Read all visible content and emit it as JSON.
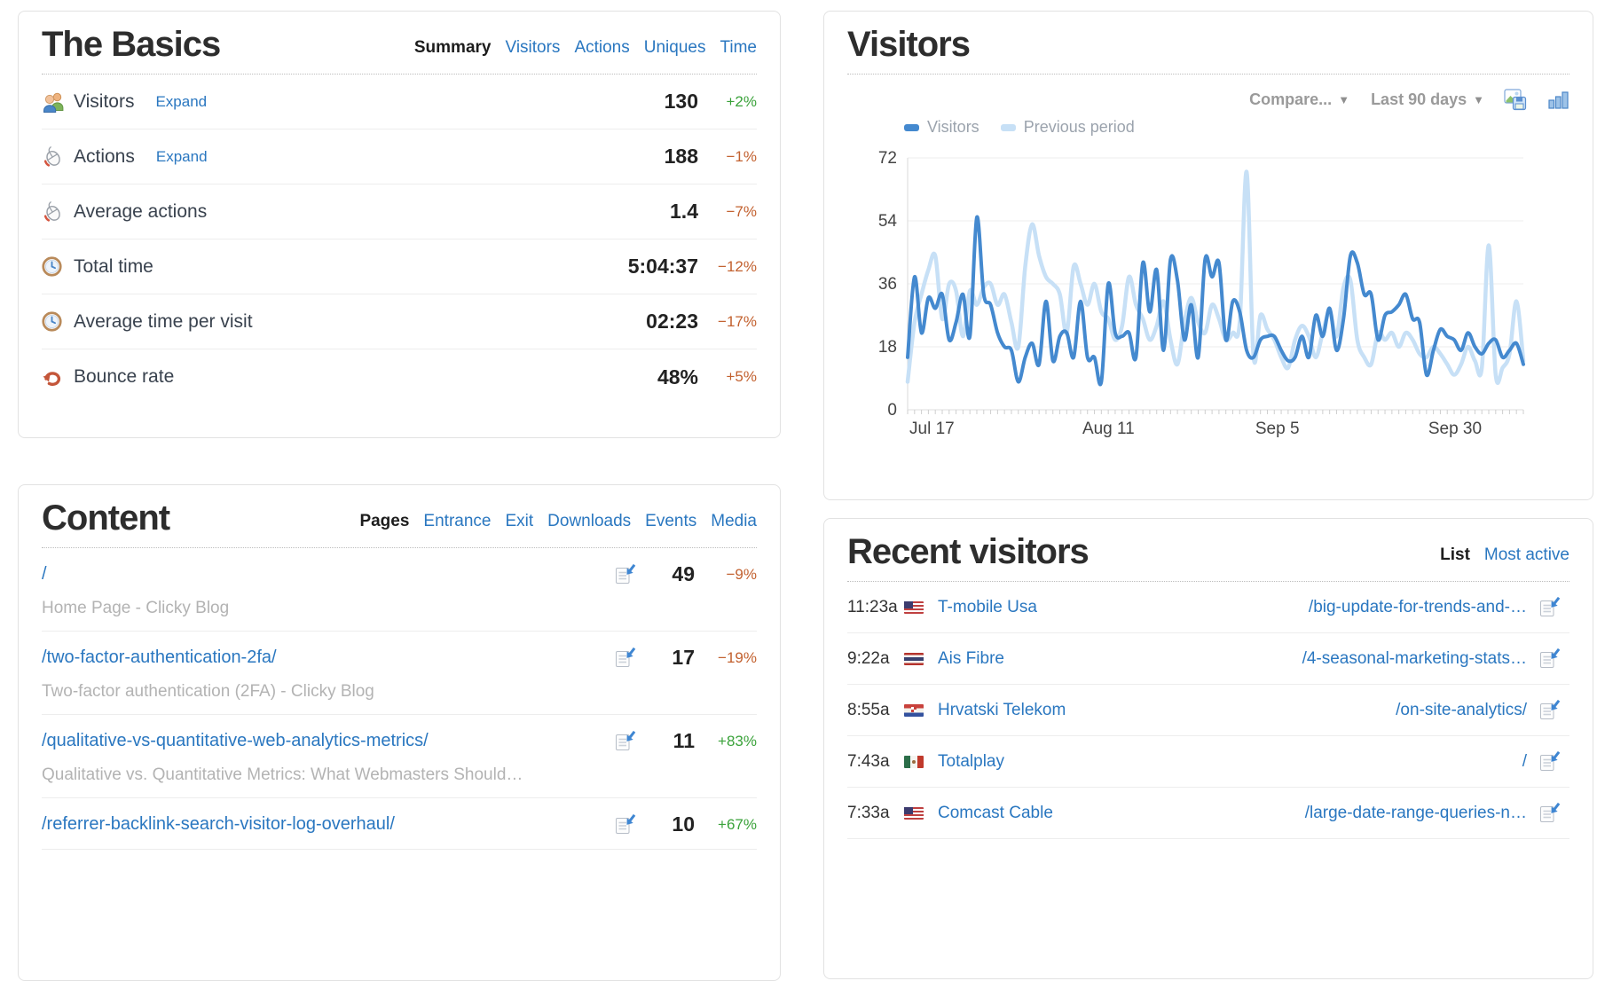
{
  "basics": {
    "title": "The Basics",
    "tabs": [
      {
        "label": "Summary",
        "active": true
      },
      {
        "label": "Visitors"
      },
      {
        "label": "Actions"
      },
      {
        "label": "Uniques"
      },
      {
        "label": "Time"
      }
    ],
    "rows": [
      {
        "icon": "visitors-icon",
        "label": "Visitors",
        "expand": "Expand",
        "value": "130",
        "pct": "+2%",
        "trend": "good"
      },
      {
        "icon": "mouse-icon",
        "label": "Actions",
        "expand": "Expand",
        "value": "188",
        "pct": "−1%",
        "trend": "bad"
      },
      {
        "icon": "mouse-icon",
        "label": "Average actions",
        "value": "1.4",
        "pct": "−7%",
        "trend": "bad"
      },
      {
        "icon": "clock-icon",
        "label": "Total time",
        "value": "5:04:37",
        "pct": "−12%",
        "trend": "bad"
      },
      {
        "icon": "clock-icon",
        "label": "Average time per visit",
        "value": "02:23",
        "pct": "−17%",
        "trend": "bad"
      },
      {
        "icon": "bounce-icon",
        "label": "Bounce rate",
        "value": "48%",
        "pct": "+5%",
        "trend": "bad"
      }
    ]
  },
  "visitors_panel": {
    "title": "Visitors",
    "compare_label": "Compare...",
    "range_label": "Last 90 days",
    "dropdown_arrow": "▼"
  },
  "chart_data": {
    "type": "line",
    "title": "Visitors",
    "xlabel": "",
    "ylabel": "",
    "ylim": [
      0,
      72
    ],
    "yticks": [
      0,
      18,
      36,
      54,
      72
    ],
    "grid": true,
    "legend_position": "top-left",
    "x_tick_labels": [
      {
        "index": 0,
        "label": "Jul 17"
      },
      {
        "index": 25,
        "label": "Aug 11"
      },
      {
        "index": 50,
        "label": "Sep 5"
      },
      {
        "index": 75,
        "label": "Sep 30"
      }
    ],
    "series": [
      {
        "name": "Visitors",
        "color": "#4489cf",
        "values": [
          15,
          38,
          22,
          32,
          29,
          33,
          20,
          25,
          33,
          21,
          55,
          33,
          30,
          22,
          18,
          17,
          8,
          15,
          19,
          13,
          31,
          14,
          21,
          22,
          15,
          31,
          15,
          15,
          8,
          36,
          22,
          21,
          22,
          15,
          42,
          28,
          40,
          17,
          43,
          37,
          20,
          30,
          15,
          43,
          38,
          42,
          20,
          31,
          28,
          17,
          15,
          20,
          21,
          21,
          17,
          14,
          15,
          21,
          15,
          27,
          21,
          29,
          17,
          26,
          44,
          42,
          33,
          33,
          20,
          27,
          28,
          30,
          33,
          26,
          25,
          10,
          17,
          23,
          21,
          20,
          17,
          22,
          18,
          16,
          19,
          20,
          15,
          17,
          19,
          13
        ]
      },
      {
        "name": "Previous period",
        "color": "#c7e0f6",
        "values": [
          8,
          25,
          33,
          40,
          44,
          26,
          36,
          34,
          21,
          34,
          30,
          35,
          36,
          30,
          33,
          25,
          18,
          41,
          53,
          44,
          38,
          36,
          33,
          22,
          41,
          36,
          30,
          36,
          28,
          26,
          20,
          24,
          38,
          30,
          26,
          20,
          24,
          31,
          20,
          13,
          25,
          32,
          25,
          22,
          30,
          26,
          20,
          22,
          25,
          68,
          15,
          27,
          23,
          20,
          15,
          12,
          20,
          24,
          21,
          15,
          22,
          28,
          21,
          35,
          37,
          20,
          15,
          13,
          22,
          20,
          22,
          18,
          22,
          20,
          16,
          15,
          18,
          16,
          13,
          10,
          13,
          18,
          14,
          12,
          47,
          10,
          12,
          16,
          31,
          14
        ]
      }
    ]
  },
  "content": {
    "title": "Content",
    "tabs": [
      {
        "label": "Pages",
        "active": true
      },
      {
        "label": "Entrance"
      },
      {
        "label": "Exit"
      },
      {
        "label": "Downloads"
      },
      {
        "label": "Events"
      },
      {
        "label": "Media"
      }
    ],
    "rows": [
      {
        "url": "/",
        "subtitle": "Home Page - Clicky Blog",
        "value": "49",
        "pct": "−9%",
        "trend": "bad"
      },
      {
        "url": "/two-factor-authentication-2fa/",
        "subtitle": "Two-factor authentication (2FA) - Clicky Blog",
        "value": "17",
        "pct": "−19%",
        "trend": "bad"
      },
      {
        "url": "/qualitative-vs-quantitative-web-analytics-metrics/",
        "subtitle": "Qualitative vs. Quantitative Metrics: What Webmasters Should…",
        "value": "11",
        "pct": "+83%",
        "trend": "good"
      },
      {
        "url": "/referrer-backlink-search-visitor-log-overhaul/",
        "value": "10",
        "pct": "+67%",
        "trend": "good"
      }
    ]
  },
  "recent": {
    "title": "Recent visitors",
    "tabs": [
      {
        "label": "List",
        "active": true
      },
      {
        "label": "Most active"
      }
    ],
    "rows": [
      {
        "time": "11:23a",
        "flag": "us",
        "country": "United States",
        "isp": "T-mobile Usa",
        "page": "/big-update-for-trends-and-…"
      },
      {
        "time": "9:22a",
        "flag": "th",
        "country": "Thailand",
        "isp": "Ais Fibre",
        "page": "/4-seasonal-marketing-stats…"
      },
      {
        "time": "8:55a",
        "flag": "hr",
        "country": "Croatia",
        "isp": "Hrvatski Telekom",
        "page": "/on-site-analytics/"
      },
      {
        "time": "7:43a",
        "flag": "mx",
        "country": "Mexico",
        "isp": "Totalplay",
        "page": "/"
      },
      {
        "time": "7:33a",
        "flag": "us",
        "country": "United States",
        "isp": "Comcast Cable",
        "page": "/large-date-range-queries-n…"
      }
    ]
  },
  "colors": {
    "link": "#2a77c0",
    "good": "#3aa23a",
    "bad": "#c2602e",
    "series_main": "#4489cf",
    "series_prev": "#c7e0f6"
  }
}
